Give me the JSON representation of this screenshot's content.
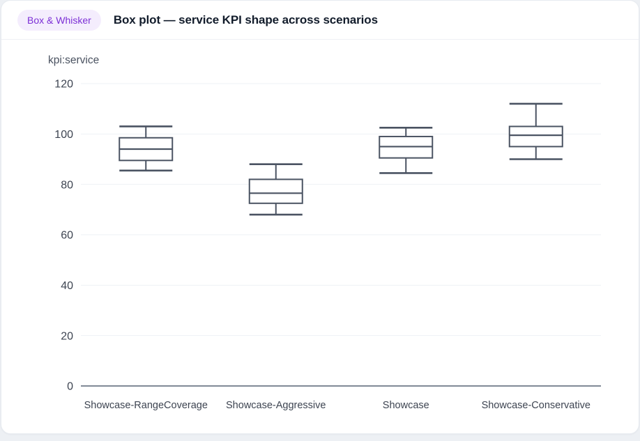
{
  "header": {
    "badge": "Box & Whisker",
    "title": "Box plot — service KPI shape across scenarios"
  },
  "colors": {
    "badge_bg": "#f4edfd",
    "badge_text": "#7c2fd6",
    "box_stroke": "#4a5362",
    "box_fill": "#ffffff",
    "gridline": "#eef1f4",
    "axis_line": "#6e7887",
    "tick_text": "#3d4451"
  },
  "chart_data": {
    "type": "box",
    "title": "Box plot — service KPI shape across scenarios",
    "xlabel": "",
    "ylabel": "kpi:service",
    "ylim": [
      0,
      120
    ],
    "yticks": [
      0,
      20,
      40,
      60,
      80,
      100,
      120
    ],
    "grid": true,
    "legend": false,
    "categories": [
      "Showcase-RangeCoverage",
      "Showcase-Aggressive",
      "Showcase",
      "Showcase-Conservative"
    ],
    "series": [
      {
        "name": "Showcase-RangeCoverage",
        "min": 85.5,
        "q1": 89.5,
        "median": 94,
        "q3": 98.5,
        "max": 103
      },
      {
        "name": "Showcase-Aggressive",
        "min": 68,
        "q1": 72.5,
        "median": 76.5,
        "q3": 82,
        "max": 88
      },
      {
        "name": "Showcase",
        "min": 84.5,
        "q1": 90.5,
        "median": 95,
        "q3": 99,
        "max": 102.5
      },
      {
        "name": "Showcase-Conservative",
        "min": 90,
        "q1": 95,
        "median": 99.5,
        "q3": 103,
        "max": 112
      }
    ]
  }
}
